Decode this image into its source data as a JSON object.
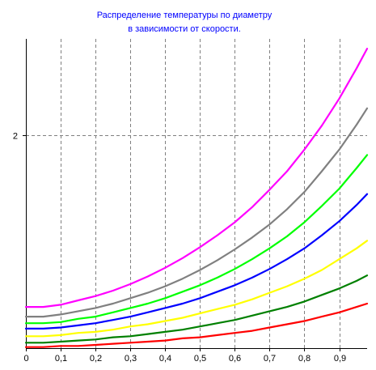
{
  "chart_data": {
    "type": "line",
    "title_lines": [
      "Распределение температуры по диаметру",
      "в зависимости от скорости."
    ],
    "xlabel": "",
    "ylabel": "",
    "x_ticks": [
      {
        "value": 0,
        "label": "0"
      },
      {
        "value": 0.1,
        "label": "0,1"
      },
      {
        "value": 0.2,
        "label": "0,2"
      },
      {
        "value": 0.3,
        "label": "0,3"
      },
      {
        "value": 0.4,
        "label": "0,4"
      },
      {
        "value": 0.5,
        "label": "0,5"
      },
      {
        "value": 0.6,
        "label": "0,6"
      },
      {
        "value": 0.7,
        "label": "0,7"
      },
      {
        "value": 0.8,
        "label": "0,8"
      },
      {
        "value": 0.9,
        "label": "0,9"
      }
    ],
    "y_ticks": [
      {
        "value": 2,
        "label": "2"
      }
    ],
    "xlim": [
      0,
      0.98
    ],
    "ylim": [
      0.04,
      2.89
    ],
    "grid": true,
    "x": [
      0,
      0.05,
      0.1,
      0.15,
      0.2,
      0.25,
      0.3,
      0.35,
      0.4,
      0.45,
      0.5,
      0.55,
      0.6,
      0.65,
      0.7,
      0.75,
      0.8,
      0.85,
      0.9,
      0.95,
      0.98
    ],
    "series": [
      {
        "color": "#ff00ff",
        "values": [
          0.42,
          0.42,
          0.44,
          0.48,
          0.52,
          0.57,
          0.63,
          0.7,
          0.78,
          0.87,
          0.97,
          1.08,
          1.2,
          1.34,
          1.5,
          1.67,
          1.87,
          2.09,
          2.34,
          2.62,
          2.8
        ]
      },
      {
        "color": "#808080",
        "values": [
          0.33,
          0.33,
          0.35,
          0.38,
          0.41,
          0.45,
          0.5,
          0.55,
          0.61,
          0.68,
          0.76,
          0.85,
          0.95,
          1.06,
          1.18,
          1.32,
          1.48,
          1.67,
          1.87,
          2.1,
          2.25
        ]
      },
      {
        "color": "#00ff00",
        "values": [
          0.27,
          0.27,
          0.28,
          0.31,
          0.33,
          0.37,
          0.41,
          0.45,
          0.5,
          0.56,
          0.62,
          0.69,
          0.77,
          0.86,
          0.96,
          1.07,
          1.2,
          1.35,
          1.51,
          1.7,
          1.82
        ]
      },
      {
        "color": "#0000ff",
        "values": [
          0.22,
          0.22,
          0.23,
          0.25,
          0.27,
          0.3,
          0.33,
          0.37,
          0.41,
          0.45,
          0.5,
          0.56,
          0.62,
          0.69,
          0.77,
          0.86,
          0.96,
          1.08,
          1.21,
          1.36,
          1.46
        ]
      },
      {
        "color": "#ffff00",
        "values": [
          0.15,
          0.15,
          0.16,
          0.18,
          0.19,
          0.21,
          0.24,
          0.26,
          0.29,
          0.32,
          0.36,
          0.4,
          0.44,
          0.49,
          0.55,
          0.61,
          0.68,
          0.76,
          0.86,
          0.96,
          1.03
        ]
      },
      {
        "color": "#008000",
        "values": [
          0.09,
          0.09,
          0.1,
          0.11,
          0.12,
          0.14,
          0.15,
          0.17,
          0.19,
          0.21,
          0.24,
          0.27,
          0.3,
          0.34,
          0.38,
          0.42,
          0.47,
          0.53,
          0.59,
          0.66,
          0.71
        ]
      },
      {
        "color": "#ff0000",
        "values": [
          0.05,
          0.05,
          0.06,
          0.06,
          0.07,
          0.08,
          0.09,
          0.1,
          0.11,
          0.13,
          0.14,
          0.16,
          0.18,
          0.2,
          0.23,
          0.26,
          0.29,
          0.33,
          0.37,
          0.42,
          0.45
        ]
      }
    ]
  }
}
